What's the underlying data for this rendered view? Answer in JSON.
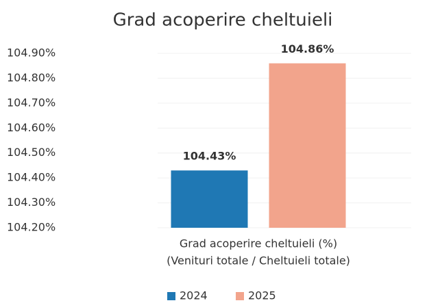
{
  "chart_data": {
    "type": "bar",
    "title": "Grad acoperire cheltuieli",
    "categories": [
      [
        "Grad acoperire cheltuieli (%)",
        "(Venituri totale / Cheltuieli totale)"
      ]
    ],
    "series": [
      {
        "name": "2024",
        "color": "#1f78b4",
        "values": [
          104.43
        ],
        "value_labels": [
          "104.43%"
        ]
      },
      {
        "name": "2025",
        "color": "#f2a48c",
        "values": [
          104.86
        ],
        "value_labels": [
          "104.86%"
        ]
      }
    ],
    "ylim": [
      104.2,
      104.9
    ],
    "yticks": [
      {
        "value": 104.2,
        "label": "104.20%"
      },
      {
        "value": 104.3,
        "label": "104.30%"
      },
      {
        "value": 104.4,
        "label": "104.40%"
      },
      {
        "value": 104.5,
        "label": "104.50%"
      },
      {
        "value": 104.6,
        "label": "104.60%"
      },
      {
        "value": 104.7,
        "label": "104.70%"
      },
      {
        "value": 104.8,
        "label": "104.80%"
      },
      {
        "value": 104.9,
        "label": "104.90%"
      }
    ],
    "grid": true,
    "legend": "bottom"
  }
}
